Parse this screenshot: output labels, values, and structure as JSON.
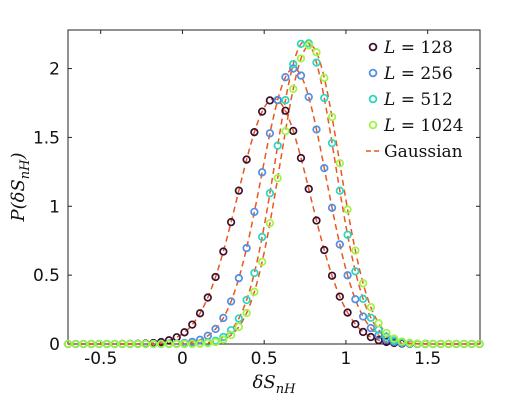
{
  "chart_data": {
    "type": "scatter",
    "title": "",
    "xlabel": "δS_nH",
    "ylabel": "P(δS_nH)",
    "xlim": [
      -0.7,
      1.82
    ],
    "ylim": [
      0,
      2.28
    ],
    "xticks": [
      -0.5,
      0,
      0.5,
      1,
      1.5
    ],
    "xtick_labels": [
      "-0.5",
      "0",
      "0.5",
      "1",
      "1.5"
    ],
    "yticks": [
      0,
      0.5,
      1,
      1.5,
      2
    ],
    "ytick_labels": [
      "0",
      "0.5",
      "1",
      "1.5",
      "2"
    ],
    "grid": false,
    "legend": {
      "position": "top-right",
      "entries": [
        {
          "label": "L = 128",
          "color": "#3a0f2f",
          "marker": "circle"
        },
        {
          "label": "L = 256",
          "color": "#4f8fe6",
          "marker": "circle"
        },
        {
          "label": "L = 512",
          "color": "#28d6c0",
          "marker": "circle"
        },
        {
          "label": "L = 1024",
          "color": "#9ef542",
          "marker": "circle"
        },
        {
          "label": "Gaussian",
          "color": "#e8571f",
          "marker": "dashed-line"
        }
      ]
    },
    "series": [
      {
        "name": "L = 128",
        "color": "#3a0f2f",
        "mean": 0.56,
        "sigma": 0.222,
        "peak": 1.78
      },
      {
        "name": "L = 256",
        "color": "#4f8fe6",
        "mean": 0.68,
        "sigma": 0.198,
        "peak": 2.0
      },
      {
        "name": "L = 512",
        "color": "#28d6c0",
        "mean": 0.75,
        "sigma": 0.182,
        "peak": 2.2
      },
      {
        "name": "L = 1024",
        "color": "#9ef542",
        "mean": 0.78,
        "sigma": 0.182,
        "peak": 2.17
      }
    ],
    "x_sampling": {
      "start": -0.7,
      "end": 1.82,
      "step": 0.0475
    },
    "fit": {
      "name": "Gaussian",
      "color": "#e8571f",
      "style": "dashed"
    }
  }
}
